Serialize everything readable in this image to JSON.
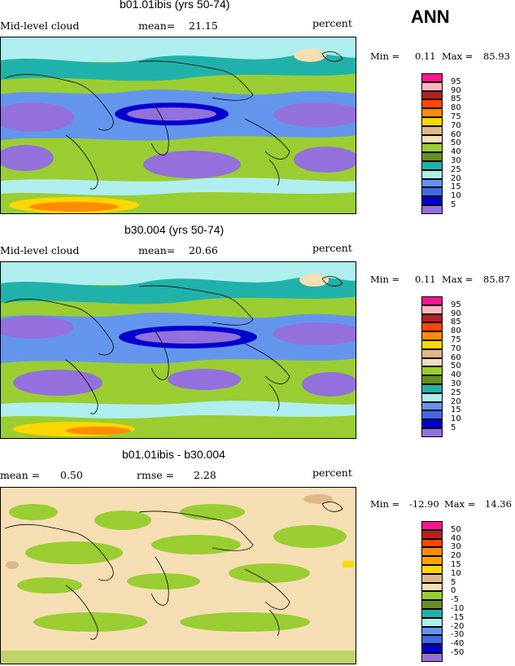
{
  "season": "ANN",
  "panels": [
    {
      "title": "b01.01ibis (yrs 50-74)",
      "left_label": "Mid-level cloud",
      "mean_label": "mean=",
      "mean_value": "21.15",
      "units": "percent",
      "min_label": "Min =",
      "min_value": "0.11",
      "max_label": "Max =",
      "max_value": "85.93"
    },
    {
      "title": "b30.004 (yrs 50-74)",
      "left_label": "Mid-level cloud",
      "mean_label": "mean=",
      "mean_value": "20.66",
      "units": "percent",
      "min_label": "Min =",
      "min_value": "0.11",
      "max_label": "Max =",
      "max_value": "85.87"
    },
    {
      "title": "b01.01ibis - b30.004",
      "left_label": "mean =",
      "left_value": "0.50",
      "mean_label": "rmse =",
      "mean_value": "2.28",
      "units": "percent",
      "min_label": "Min =",
      "min_value": "-12.90",
      "max_label": "Max =",
      "max_value": "14.36"
    }
  ],
  "legend_abs": {
    "levels": [
      "95",
      "90",
      "85",
      "80",
      "75",
      "70",
      "60",
      "50",
      "40",
      "30",
      "25",
      "20",
      "15",
      "10",
      "5"
    ],
    "colors": [
      "#ff1493",
      "#ffb6c1",
      "#b22222",
      "#ff4500",
      "#ff8c00",
      "#ffd700",
      "#deb887",
      "#f5deb3",
      "#9acd32",
      "#6b8e23",
      "#20b2aa",
      "#afeeee",
      "#6495ed",
      "#4169e1",
      "#0000cd",
      "#9370db"
    ]
  },
  "legend_diff": {
    "levels": [
      "50",
      "40",
      "30",
      "20",
      "15",
      "10",
      "5",
      "0",
      "-5",
      "-10",
      "-15",
      "-20",
      "-30",
      "-40",
      "-50"
    ],
    "colors": [
      "#ff1493",
      "#b22222",
      "#ff4500",
      "#ff8c00",
      "#ffa500",
      "#ffd700",
      "#deb887",
      "#f5deb3",
      "#9acd32",
      "#6b8e23",
      "#20b2aa",
      "#afeeee",
      "#6495ed",
      "#4169e1",
      "#0000cd",
      "#9370db"
    ]
  },
  "chart_data": [
    {
      "type": "heatmap",
      "title": "b01.01ibis (yrs 50-74)",
      "variable": "Mid-level cloud",
      "units": "percent",
      "mean": 21.15,
      "min": 0.11,
      "max": 85.93,
      "contour_levels": [
        5,
        10,
        15,
        20,
        25,
        30,
        40,
        50,
        60,
        70,
        75,
        80,
        85,
        90,
        95
      ]
    },
    {
      "type": "heatmap",
      "title": "b30.004 (yrs 50-74)",
      "variable": "Mid-level cloud",
      "units": "percent",
      "mean": 20.66,
      "min": 0.11,
      "max": 85.87,
      "contour_levels": [
        5,
        10,
        15,
        20,
        25,
        30,
        40,
        50,
        60,
        70,
        75,
        80,
        85,
        90,
        95
      ]
    },
    {
      "type": "heatmap",
      "title": "b01.01ibis - b30.004",
      "units": "percent",
      "mean": 0.5,
      "rmse": 2.28,
      "min": -12.9,
      "max": 14.36,
      "contour_levels": [
        -50,
        -40,
        -30,
        -20,
        -15,
        -10,
        -5,
        0,
        5,
        10,
        15,
        20,
        30,
        40,
        50
      ]
    }
  ]
}
